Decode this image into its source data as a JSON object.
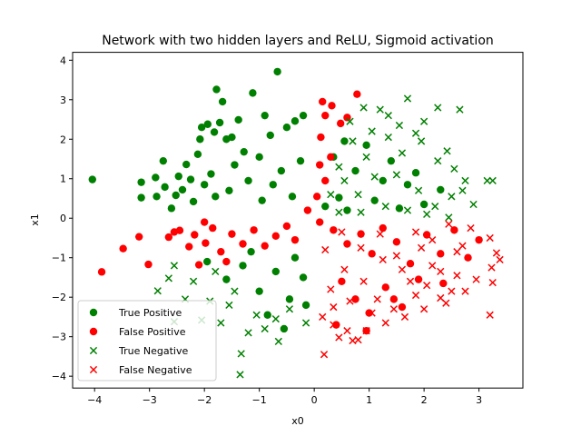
{
  "chart_data": {
    "type": "scatter",
    "title": "Network with two hidden layers and ReLU, Sigmoid activation",
    "xlabel": "x0",
    "ylabel": "x1",
    "xlim": [
      -4.4,
      3.8
    ],
    "ylim": [
      -4.3,
      4.2
    ],
    "xticks": [
      -4,
      -3,
      -2,
      -1,
      0,
      1,
      2,
      3
    ],
    "yticks": [
      -4,
      -3,
      -2,
      -1,
      0,
      1,
      2,
      3,
      4
    ],
    "grid": false,
    "legend_position": "lower left",
    "series": [
      {
        "name": "True Positive",
        "marker": "circle",
        "color": "#008000",
        "points": [
          [
            -4.04,
            0.98
          ],
          [
            -3.15,
            0.91
          ],
          [
            -3.15,
            0.52
          ],
          [
            -2.89,
            1.03
          ],
          [
            -2.87,
            0.55
          ],
          [
            -2.75,
            1.45
          ],
          [
            -2.72,
            0.79
          ],
          [
            -2.6,
            0.25
          ],
          [
            -2.52,
            0.58
          ],
          [
            -2.47,
            1.06
          ],
          [
            -2.4,
            0.72
          ],
          [
            -2.33,
            1.36
          ],
          [
            -2.25,
            0.98
          ],
          [
            -2.2,
            0.42
          ],
          [
            -2.12,
            1.62
          ],
          [
            -2.08,
            2.0
          ],
          [
            -2.05,
            2.3
          ],
          [
            -1.94,
            2.38
          ],
          [
            -1.88,
            1.12
          ],
          [
            -1.82,
            2.18
          ],
          [
            -1.78,
            3.26
          ],
          [
            -1.72,
            2.42
          ],
          [
            -1.67,
            2.95
          ],
          [
            -1.6,
            2.0
          ],
          [
            -1.5,
            2.05
          ],
          [
            -1.38,
            2.49
          ],
          [
            -1.28,
            1.68
          ],
          [
            -1.12,
            3.17
          ],
          [
            -1.0,
            1.55
          ],
          [
            -0.9,
            2.6
          ],
          [
            -0.8,
            2.1
          ],
          [
            -0.67,
            3.71
          ],
          [
            -0.5,
            2.3
          ],
          [
            -0.35,
            2.46
          ],
          [
            -0.2,
            2.6
          ],
          [
            -1.55,
            0.7
          ],
          [
            -1.2,
            0.95
          ],
          [
            -0.95,
            0.45
          ],
          [
            -0.6,
            1.2
          ],
          [
            -0.4,
            0.55
          ],
          [
            -0.25,
            1.45
          ],
          [
            -1.8,
            0.55
          ],
          [
            -1.45,
            1.35
          ],
          [
            -0.75,
            0.85
          ],
          [
            -2.0,
            0.85
          ],
          [
            0.45,
            0.52
          ],
          [
            0.75,
            1.2
          ],
          [
            1.1,
            0.45
          ],
          [
            1.4,
            1.45
          ],
          [
            1.7,
            0.85
          ],
          [
            2.0,
            0.35
          ],
          [
            2.3,
            0.72
          ],
          [
            0.35,
            1.55
          ],
          [
            0.95,
            1.85
          ],
          [
            1.25,
            0.95
          ],
          [
            0.2,
            0.3
          ],
          [
            0.6,
            0.2
          ],
          [
            1.85,
            1.15
          ],
          [
            0.55,
            1.95
          ],
          [
            1.55,
            0.25
          ],
          [
            -1.3,
            -1.2
          ],
          [
            -1.0,
            -1.85
          ],
          [
            -0.7,
            -1.35
          ],
          [
            -0.45,
            -2.05
          ],
          [
            -0.2,
            -1.5
          ],
          [
            -1.6,
            -1.55
          ],
          [
            -0.85,
            -2.45
          ],
          [
            -0.35,
            -1.0
          ],
          [
            -1.15,
            -0.85
          ],
          [
            -0.55,
            -2.8
          ],
          [
            -1.95,
            -1.1
          ],
          [
            -0.15,
            -2.2
          ]
        ]
      },
      {
        "name": "False Positive",
        "marker": "circle",
        "color": "#ff0000",
        "points": [
          [
            -3.87,
            -1.36
          ],
          [
            -3.48,
            -0.77
          ],
          [
            -3.19,
            -0.47
          ],
          [
            -3.02,
            -1.17
          ],
          [
            -2.65,
            -0.48
          ],
          [
            -2.45,
            -0.31
          ],
          [
            -2.28,
            -0.72
          ],
          [
            -2.18,
            -0.42
          ],
          [
            -2.1,
            -1.18
          ],
          [
            -1.98,
            -0.63
          ],
          [
            -1.85,
            -0.25
          ],
          [
            -1.7,
            -0.85
          ],
          [
            -1.5,
            -0.4
          ],
          [
            -1.3,
            -0.65
          ],
          [
            -1.1,
            -0.3
          ],
          [
            -0.9,
            -0.7
          ],
          [
            -0.7,
            -0.45
          ],
          [
            -0.5,
            -0.2
          ],
          [
            -0.35,
            -0.55
          ],
          [
            -0.12,
            0.2
          ],
          [
            0.05,
            0.55
          ],
          [
            0.1,
            1.35
          ],
          [
            0.12,
            2.05
          ],
          [
            0.2,
            2.6
          ],
          [
            0.32,
            2.85
          ],
          [
            0.48,
            2.4
          ],
          [
            0.6,
            2.55
          ],
          [
            0.78,
            3.14
          ],
          [
            0.15,
            2.95
          ],
          [
            0.3,
            1.55
          ],
          [
            0.2,
            0.95
          ],
          [
            0.1,
            -0.1
          ],
          [
            0.35,
            -0.3
          ],
          [
            0.6,
            -0.65
          ],
          [
            0.85,
            -0.4
          ],
          [
            1.05,
            -0.9
          ],
          [
            1.25,
            -0.25
          ],
          [
            1.5,
            -0.6
          ],
          [
            1.75,
            -1.15
          ],
          [
            2.05,
            -0.42
          ],
          [
            2.3,
            -0.9
          ],
          [
            2.55,
            -0.3
          ],
          [
            2.8,
            -1.0
          ],
          [
            0.5,
            -1.6
          ],
          [
            0.75,
            -2.05
          ],
          [
            1.0,
            -2.4
          ],
          [
            1.3,
            -1.75
          ],
          [
            1.6,
            -2.25
          ],
          [
            1.9,
            -1.55
          ],
          [
            0.4,
            -2.7
          ],
          [
            0.95,
            -2.85
          ],
          [
            1.45,
            -2.05
          ],
          [
            -2.55,
            -0.35
          ],
          [
            -2.0,
            -0.1
          ],
          [
            -1.6,
            -1.1
          ],
          [
            2.35,
            -1.65
          ],
          [
            3.0,
            -0.55
          ]
        ]
      },
      {
        "name": "True Negative",
        "marker": "x",
        "color": "#008000",
        "points": [
          [
            -2.85,
            -1.84
          ],
          [
            -2.65,
            -1.52
          ],
          [
            -2.35,
            -2.05
          ],
          [
            -2.05,
            -2.58
          ],
          [
            -1.9,
            -2.1
          ],
          [
            -1.7,
            -2.65
          ],
          [
            -1.55,
            -2.2
          ],
          [
            -1.33,
            -3.43
          ],
          [
            -1.35,
            -3.96
          ],
          [
            -1.2,
            -2.9
          ],
          [
            -1.05,
            -2.45
          ],
          [
            -0.9,
            -2.8
          ],
          [
            -0.65,
            -3.12
          ],
          [
            -0.7,
            -2.55
          ],
          [
            -0.45,
            -2.3
          ],
          [
            -0.15,
            -2.65
          ],
          [
            -2.55,
            -1.2
          ],
          [
            -2.2,
            -1.6
          ],
          [
            -1.8,
            -1.35
          ],
          [
            -1.45,
            -1.85
          ],
          [
            0.65,
            2.45
          ],
          [
            0.9,
            2.8
          ],
          [
            1.05,
            2.2
          ],
          [
            1.2,
            2.75
          ],
          [
            1.35,
            2.6
          ],
          [
            1.55,
            2.35
          ],
          [
            1.7,
            3.03
          ],
          [
            1.85,
            2.15
          ],
          [
            2.0,
            2.45
          ],
          [
            2.25,
            2.8
          ],
          [
            2.42,
            1.7
          ],
          [
            2.65,
            2.75
          ],
          [
            2.55,
            1.25
          ],
          [
            2.7,
            0.7
          ],
          [
            3.15,
            0.95
          ],
          [
            3.25,
            0.95
          ],
          [
            2.9,
            0.35
          ],
          [
            2.75,
            0.95
          ],
          [
            2.25,
            1.45
          ],
          [
            1.95,
            1.95
          ],
          [
            1.6,
            1.65
          ],
          [
            1.35,
            2.05
          ],
          [
            0.95,
            1.55
          ],
          [
            0.7,
            1.95
          ],
          [
            0.45,
            1.3
          ],
          [
            0.3,
            0.6
          ],
          [
            0.55,
            0.95
          ],
          [
            0.8,
            0.6
          ],
          [
            1.1,
            1.05
          ],
          [
            1.5,
            1.1
          ],
          [
            1.9,
            0.7
          ],
          [
            2.2,
            0.3
          ],
          [
            2.5,
            0.55
          ],
          [
            2.45,
            0.02
          ],
          [
            2.05,
            0.1
          ],
          [
            1.7,
            0.2
          ],
          [
            1.3,
            0.3
          ],
          [
            0.85,
            0.15
          ],
          [
            0.45,
            0.15
          ],
          [
            -2.55,
            -2.62
          ]
        ]
      },
      {
        "name": "False Negative",
        "marker": "x",
        "color": "#ff0000",
        "points": [
          [
            3.32,
            -0.88
          ],
          [
            3.38,
            -1.05
          ],
          [
            3.2,
            -0.5
          ],
          [
            3.23,
            -1.25
          ],
          [
            3.25,
            -1.63
          ],
          [
            3.2,
            -2.45
          ],
          [
            2.85,
            -0.25
          ],
          [
            2.7,
            -0.7
          ],
          [
            2.6,
            -1.45
          ],
          [
            2.5,
            -1.85
          ],
          [
            2.3,
            -2.02
          ],
          [
            2.15,
            -1.2
          ],
          [
            2.0,
            -2.3
          ],
          [
            1.85,
            -1.95
          ],
          [
            1.65,
            -2.5
          ],
          [
            1.45,
            -2.3
          ],
          [
            1.3,
            -2.65
          ],
          [
            1.15,
            -2.05
          ],
          [
            0.95,
            -2.85
          ],
          [
            0.8,
            -3.08
          ],
          [
            0.7,
            -3.1
          ],
          [
            0.6,
            -2.85
          ],
          [
            0.45,
            -3.02
          ],
          [
            0.35,
            -2.7
          ],
          [
            0.18,
            -3.45
          ],
          [
            0.15,
            -2.5
          ],
          [
            0.3,
            -1.8
          ],
          [
            0.55,
            -1.3
          ],
          [
            0.9,
            -1.6
          ],
          [
            1.25,
            -1.05
          ],
          [
            1.6,
            -1.3
          ],
          [
            1.95,
            -0.75
          ],
          [
            2.3,
            -1.35
          ],
          [
            2.6,
            -0.85
          ],
          [
            2.95,
            -1.55
          ],
          [
            0.2,
            -0.8
          ],
          [
            0.5,
            -0.35
          ],
          [
            0.85,
            -0.75
          ],
          [
            1.2,
            -0.4
          ],
          [
            1.5,
            -0.95
          ],
          [
            1.85,
            -0.35
          ],
          [
            2.15,
            -0.55
          ],
          [
            2.45,
            -0.15
          ],
          [
            2.75,
            -1.85
          ],
          [
            1.05,
            -2.4
          ],
          [
            0.65,
            -2.1
          ],
          [
            0.35,
            -2.25
          ],
          [
            1.75,
            -1.6
          ],
          [
            2.05,
            -1.7
          ],
          [
            2.4,
            -2.15
          ]
        ]
      }
    ]
  }
}
